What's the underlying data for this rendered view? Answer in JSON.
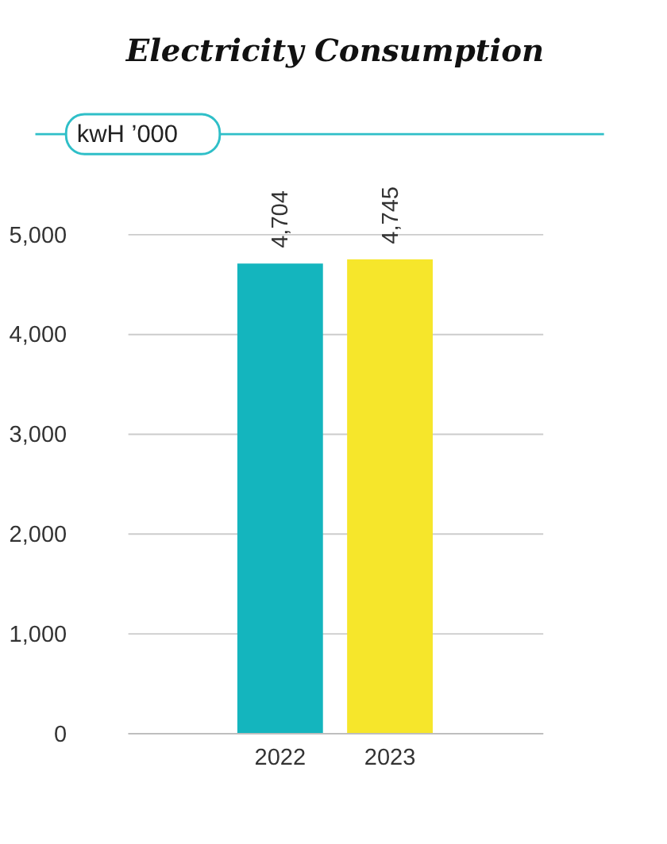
{
  "chart_data": {
    "type": "bar",
    "title": "Electricity Consumption",
    "ylabel": "kwH ’000",
    "categories": [
      "2022",
      "2023"
    ],
    "series": [
      {
        "values": [
          4704,
          4745
        ],
        "value_labels": [
          "4,704",
          "4,745"
        ],
        "colors": [
          "#14b5be",
          "#f6e62b"
        ]
      }
    ],
    "ylim": [
      0,
      6000
    ],
    "yticks": [
      0,
      {
        "value": 1000,
        "label": "1,000"
      },
      {
        "value": 2000,
        "label": "2,000"
      },
      {
        "value": 3000,
        "label": "3,000"
      },
      {
        "value": 4000,
        "label": "4,000"
      },
      {
        "value": 5000,
        "label": "5,000"
      }
    ],
    "grid": "y"
  }
}
